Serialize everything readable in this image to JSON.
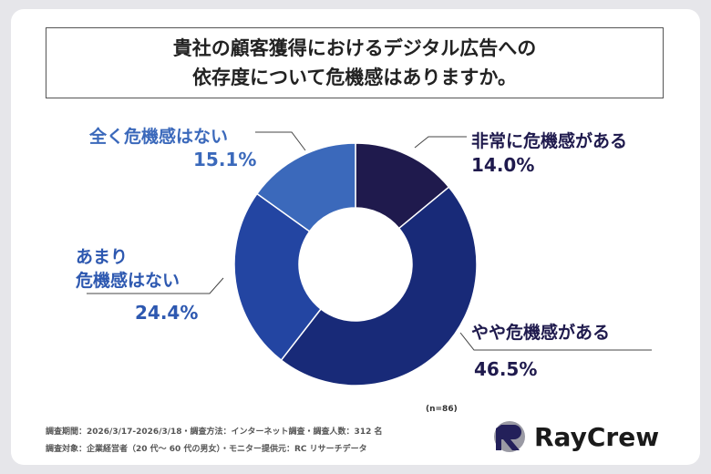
{
  "chart_data": {
    "type": "pie",
    "donut": true,
    "title": [
      "貴社の顧客獲得におけるデジタル広告への",
      "依存度について危機感はありますか。"
    ],
    "categories": [
      "非常に危機感がある",
      "やや危機感がある",
      "あまり危機感はない",
      "全く危機感はない"
    ],
    "values": [
      14.0,
      46.5,
      24.4,
      15.1
    ],
    "value_labels": [
      "14.0%",
      "46.5%",
      "24.4%",
      "15.1%"
    ],
    "colors": [
      "#1f1a4d",
      "#182a78",
      "#2345a2",
      "#3b69bb"
    ],
    "label_colors": [
      "#1f1a4d",
      "#1f1a4d",
      "#2d58b0",
      "#3b69bb"
    ],
    "sample": "(n=86)"
  },
  "footer": {
    "line1": "調査期間：2026/3/17-2026/3/18・調査方法：インターネット調査・調査人数：312 名",
    "line2": "調査対象：企業経営者（20 代～ 60 代の男女）・モニター提供元：RC リサーチデータ"
  },
  "logo": {
    "text": "RayCrew"
  }
}
